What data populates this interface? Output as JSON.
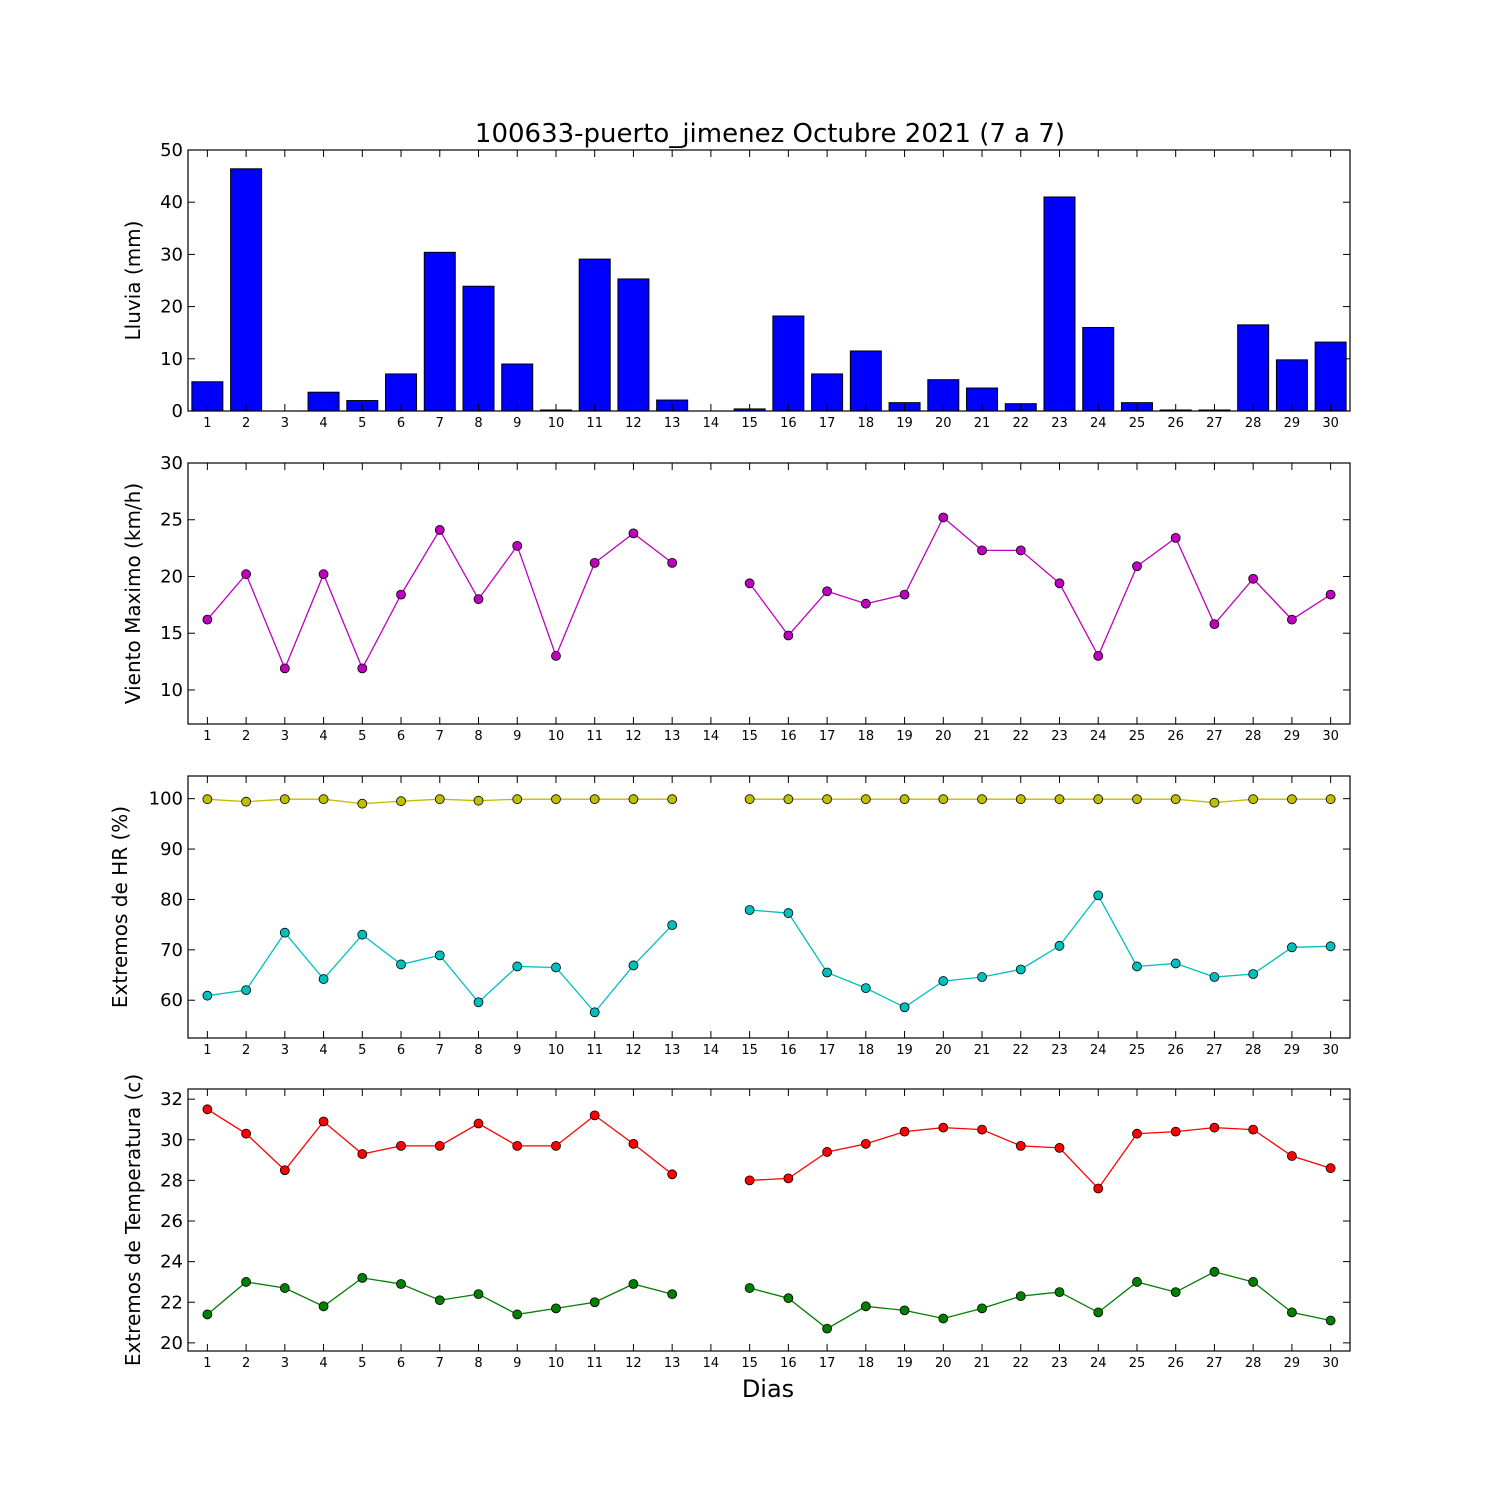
{
  "figure": {
    "title": "100633-puerto_jimenez Octubre 2021  (7 a 7)",
    "xlabel": "Dias"
  },
  "chart_data": [
    {
      "type": "bar",
      "title": "100633-puerto_jimenez Octubre 2021  (7 a 7)",
      "ylabel": "Lluvia (mm)",
      "xlabel": "",
      "categories": [
        1,
        2,
        3,
        4,
        5,
        6,
        7,
        8,
        9,
        10,
        11,
        12,
        13,
        14,
        15,
        16,
        17,
        18,
        19,
        20,
        21,
        22,
        23,
        24,
        25,
        26,
        27,
        28,
        29,
        30
      ],
      "xlim": [
        0.5,
        30.5
      ],
      "ylim": [
        0,
        50
      ],
      "yticks": [
        0,
        10,
        20,
        30,
        40,
        50
      ],
      "grid": false,
      "series": [
        {
          "color": "#0000ff",
          "values": [
            5.6,
            46.4,
            0,
            3.6,
            2.0,
            7.1,
            30.4,
            23.9,
            9.0,
            0.2,
            29.1,
            25.3,
            2.1,
            0,
            0.4,
            18.2,
            7.1,
            11.5,
            1.6,
            6.0,
            4.4,
            1.4,
            41.0,
            16.0,
            1.6,
            0.2,
            0.2,
            16.5,
            9.8,
            13.2
          ]
        }
      ]
    },
    {
      "type": "line",
      "ylabel": "Viento Maximo (km/h)",
      "xlabel": "",
      "x": [
        1,
        2,
        3,
        4,
        5,
        6,
        7,
        8,
        9,
        10,
        11,
        12,
        13,
        14,
        15,
        16,
        17,
        18,
        19,
        20,
        21,
        22,
        23,
        24,
        25,
        26,
        27,
        28,
        29,
        30
      ],
      "xlim": [
        0.5,
        30.5
      ],
      "ylim": [
        7,
        30
      ],
      "yticks": [
        10,
        15,
        20,
        25,
        30
      ],
      "grid": false,
      "series": [
        {
          "color": "#bf00bf",
          "marker": "circle",
          "values": [
            16.2,
            20.2,
            11.9,
            20.2,
            11.9,
            18.4,
            24.1,
            18.0,
            22.7,
            13.0,
            21.2,
            23.8,
            21.2,
            null,
            19.4,
            14.8,
            18.7,
            17.6,
            18.4,
            25.2,
            22.3,
            22.3,
            19.4,
            13.0,
            20.9,
            23.4,
            15.8,
            19.8,
            16.2,
            18.4
          ]
        }
      ]
    },
    {
      "type": "line",
      "ylabel": "Extremos de HR (%)",
      "xlabel": "",
      "x": [
        1,
        2,
        3,
        4,
        5,
        6,
        7,
        8,
        9,
        10,
        11,
        12,
        13,
        14,
        15,
        16,
        17,
        18,
        19,
        20,
        21,
        22,
        23,
        24,
        25,
        26,
        27,
        28,
        29,
        30
      ],
      "xlim": [
        0.5,
        30.5
      ],
      "ylim": [
        52.5,
        104.5
      ],
      "yticks": [
        60,
        70,
        80,
        90,
        100
      ],
      "grid": false,
      "series": [
        {
          "color": "#bfbf00",
          "marker": "circle",
          "values": [
            99.9,
            99.4,
            99.9,
            99.9,
            99.0,
            99.5,
            99.9,
            99.6,
            99.9,
            99.9,
            99.9,
            99.9,
            99.9,
            null,
            99.9,
            99.9,
            99.9,
            99.9,
            99.9,
            99.9,
            99.9,
            99.9,
            99.9,
            99.9,
            99.9,
            99.9,
            99.2,
            99.9,
            99.9,
            99.9
          ]
        },
        {
          "color": "#00bfbf",
          "marker": "circle",
          "values": [
            60.9,
            62.0,
            73.4,
            64.2,
            73.0,
            67.1,
            68.9,
            59.6,
            66.7,
            66.5,
            57.6,
            66.9,
            74.9,
            null,
            77.9,
            77.3,
            65.5,
            62.4,
            58.6,
            63.8,
            64.6,
            66.1,
            70.8,
            80.8,
            66.7,
            67.3,
            64.6,
            65.2,
            70.5,
            70.7
          ]
        }
      ]
    },
    {
      "type": "line",
      "ylabel": "Extremos de Temperatura (c)",
      "xlabel": "Dias",
      "x": [
        1,
        2,
        3,
        4,
        5,
        6,
        7,
        8,
        9,
        10,
        11,
        12,
        13,
        14,
        15,
        16,
        17,
        18,
        19,
        20,
        21,
        22,
        23,
        24,
        25,
        26,
        27,
        28,
        29,
        30
      ],
      "xlim": [
        0.5,
        30.5
      ],
      "ylim": [
        19.6,
        32.5
      ],
      "yticks": [
        20,
        22,
        24,
        26,
        28,
        30,
        32
      ],
      "grid": false,
      "series": [
        {
          "color": "#ff0000",
          "marker": "circle",
          "values": [
            31.5,
            30.3,
            28.5,
            30.9,
            29.3,
            29.7,
            29.7,
            30.8,
            29.7,
            29.7,
            31.2,
            29.8,
            28.3,
            null,
            28.0,
            28.1,
            29.4,
            29.8,
            30.4,
            30.6,
            30.5,
            29.7,
            29.6,
            27.6,
            30.3,
            30.4,
            30.6,
            30.5,
            29.2,
            28.6
          ]
        },
        {
          "color": "#007f00",
          "marker": "circle",
          "values": [
            21.4,
            23.0,
            22.7,
            21.8,
            23.2,
            22.9,
            22.1,
            22.4,
            21.4,
            21.7,
            22.0,
            22.9,
            22.4,
            null,
            22.7,
            22.2,
            20.7,
            21.8,
            21.6,
            21.2,
            21.7,
            22.3,
            22.5,
            21.5,
            23.0,
            22.5,
            23.5,
            23.0,
            21.5,
            21.1
          ]
        }
      ]
    }
  ]
}
